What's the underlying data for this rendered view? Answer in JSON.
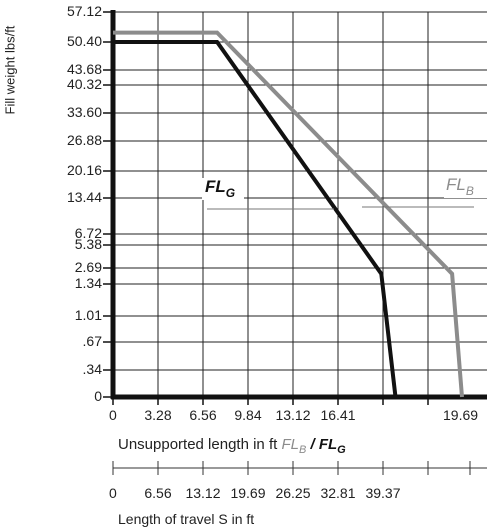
{
  "chart_data": {
    "type": "line",
    "ylabel": "Fill weight lbs/ft",
    "xlabel_text": "Unsupported length in ft",
    "xlabel_fb": "FL",
    "xlabel_fb_sub": "B",
    "xlabel_sep": " / ",
    "xlabel_fg": "FL",
    "xlabel_fg_sub": "G",
    "x2label": "Length of travel S in ft",
    "y_ticks": [
      "0",
      ".34",
      ".67",
      "1.01",
      "1.34",
      "2.69",
      "5.38",
      "6.72",
      "13.44",
      "20.16",
      "26.88",
      "33.60",
      "40.32",
      "43.68",
      "50.40",
      "57.12"
    ],
    "x_ticks": [
      "0",
      "3.28",
      "6.56",
      "9.84",
      "13.12",
      "16.41",
      "19.69"
    ],
    "x2_ticks": [
      "0",
      "6.56",
      "13.12",
      "19.69",
      "26.25",
      "32.81",
      "39.37"
    ],
    "xlim": [
      0,
      19.69
    ],
    "series": [
      {
        "name": "FL",
        "sub": "B",
        "color": "#8c8c8c",
        "points": [
          [
            0,
            52.5
          ],
          [
            5.74,
            52.5
          ],
          [
            18.7,
            2.2
          ],
          [
            19.25,
            0
          ]
        ]
      },
      {
        "name": "FL",
        "sub": "G",
        "color": "#111111",
        "points": [
          [
            0,
            50.4
          ],
          [
            5.74,
            50.4
          ],
          [
            14.8,
            2.2
          ],
          [
            15.58,
            0
          ]
        ]
      }
    ],
    "grid": true
  },
  "colors": {
    "axis": "#111111",
    "grid": "#222222",
    "fl_b": "#8c8c8c",
    "fl_g": "#111111"
  }
}
